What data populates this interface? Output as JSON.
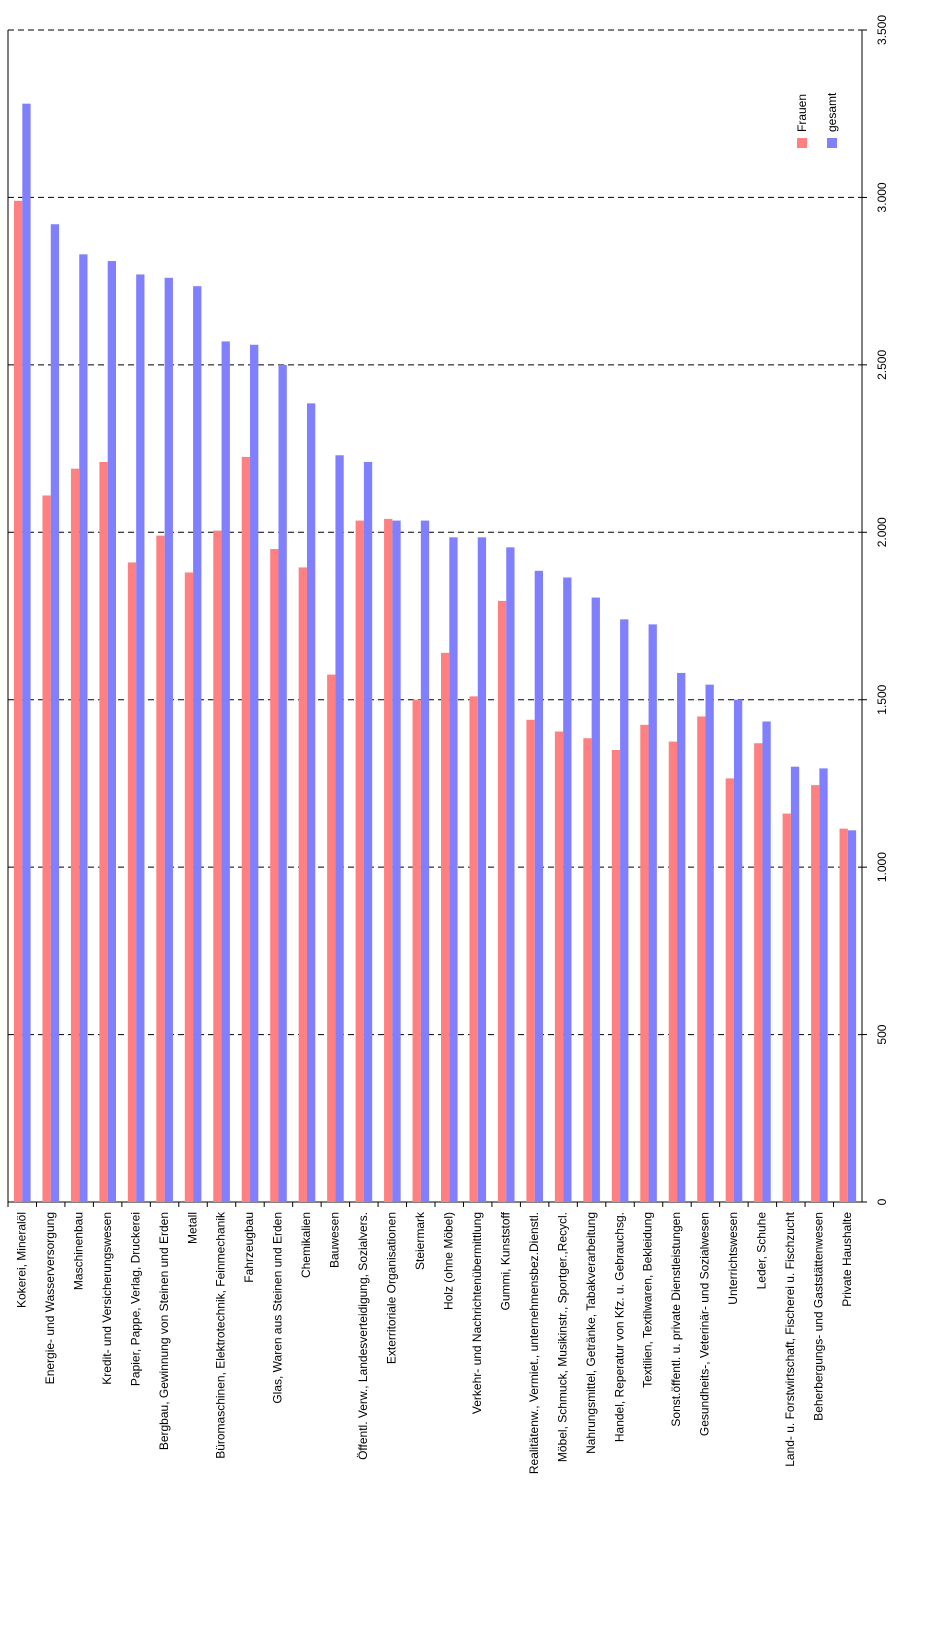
{
  "chart_data": {
    "type": "bar",
    "categories": [
      "Kokerei, Mineralöl",
      "Energie- und Wasserversorgung",
      "Maschinenbau",
      "Kredit- und Versicherungswesen",
      "Papier, Pappe, Verlag, Druckerei",
      "Bergbau, Gewinnung von Steinen und Erden",
      "Metall",
      "Büromaschinen, Elektrotechnik, Feinmechanik",
      "Fahrzeugbau",
      "Glas, Waren aus Steinen und Erden",
      "Chemikalien",
      "Bauwesen",
      "Öffentl. Verw., Landesverteidigung, Sozialvers.",
      "Exterritoriale Organisationen",
      "Steiermark",
      "Holz (ohne Möbel)",
      "Verkehr- und Nachrichtenübermittlung",
      "Gummi, Kunststoff",
      "Realitätenw., Vermiet., unternehmensbez.Dienstl.",
      "Möbel, Schmuck, Musikinstr., Sportger.,Recycl.",
      "Nahrungsmittel, Getränke, Tabakverarbeitung",
      "Handel, Reperatur von Kfz. u. Gebrauchsg.",
      "Textilien, Textilwaren, Bekleidung",
      "Sonst.öffentl. u. private Dienstleistungen",
      "Gesundheits-, Veterinär- und Sozialwesen",
      "Unterrichtswesen",
      "Leder, Schuhe",
      "Land- u. Forstwirtschaft, Fischerei u. Fischzucht",
      "Beherbergungs- und Gaststättenwesen",
      "Private Haushalte"
    ],
    "series": [
      {
        "name": "Frauen",
        "color": "#ff8080",
        "values": [
          2990,
          2110,
          2190,
          2210,
          1910,
          1990,
          1880,
          2005,
          2225,
          1950,
          1895,
          1575,
          2035,
          2040,
          1500,
          1640,
          1510,
          1795,
          1440,
          1405,
          1385,
          1350,
          1425,
          1375,
          1450,
          1265,
          1370,
          1160,
          1245,
          1115
        ]
      },
      {
        "name": "gesamt",
        "color": "#8080ff",
        "values": [
          3280,
          2920,
          2830,
          2810,
          2770,
          2760,
          2735,
          2570,
          2560,
          2500,
          2385,
          2230,
          2210,
          2035,
          2035,
          1985,
          1985,
          1955,
          1885,
          1865,
          1805,
          1740,
          1725,
          1580,
          1545,
          1500,
          1435,
          1300,
          1295,
          1110
        ]
      }
    ],
    "ylim": [
      0,
      3500
    ],
    "yticks": [
      0,
      500,
      {
        "value": 1000,
        "label": "1.000"
      },
      {
        "value": 1500,
        "label": "1.500"
      },
      {
        "value": 2000,
        "label": "2.000"
      },
      {
        "value": 2500,
        "label": "2.500"
      },
      {
        "value": 3000,
        "label": "3.000"
      },
      {
        "value": 3500,
        "label": "3.500"
      }
    ],
    "grid": true,
    "legend": "top-right"
  }
}
